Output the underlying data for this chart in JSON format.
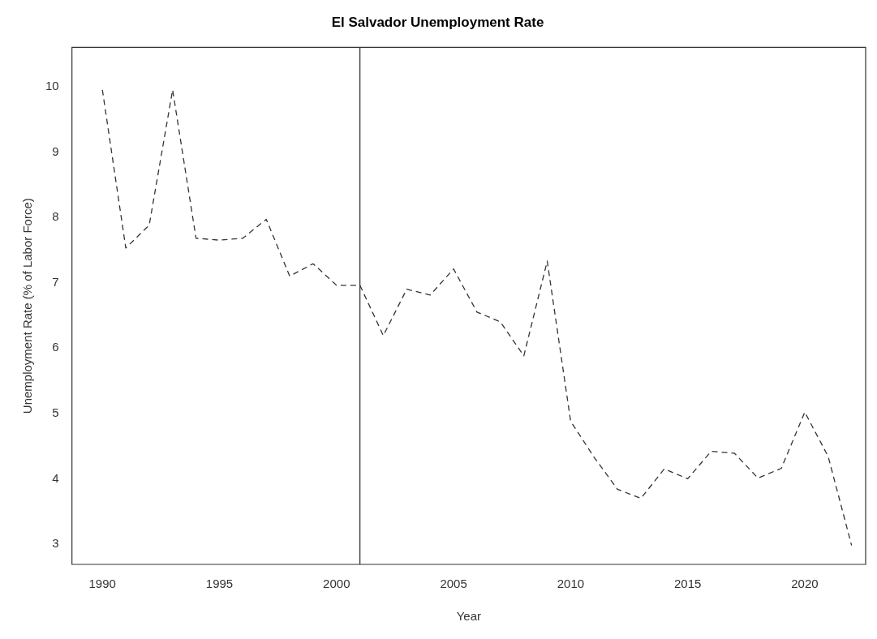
{
  "chart_data": {
    "type": "line",
    "title": "El Salvador Unemployment Rate",
    "xlabel": "Year",
    "ylabel": "Unemployment Rate (% of Labor Force)",
    "x": [
      1990,
      1991,
      1992,
      1993,
      1994,
      1995,
      1996,
      1997,
      1998,
      1999,
      2000,
      2001,
      2002,
      2003,
      2004,
      2005,
      2006,
      2007,
      2008,
      2009,
      2010,
      2011,
      2012,
      2013,
      2014,
      2015,
      2016,
      2017,
      2018,
      2019,
      2020,
      2021,
      2022
    ],
    "series": [
      {
        "color": "#333333",
        "line_style": "dashed",
        "values": [
          9.95,
          7.53,
          7.88,
          9.95,
          7.68,
          7.65,
          7.68,
          7.97,
          7.1,
          7.29,
          6.96,
          6.96,
          6.19,
          6.9,
          6.81,
          7.21,
          6.55,
          6.4,
          5.88,
          7.33,
          4.88,
          4.33,
          3.84,
          3.7,
          4.15,
          4.0,
          4.42,
          4.39,
          4.01,
          4.16,
          5.02,
          4.34,
          2.98
        ]
      }
    ],
    "xlim": [
      1988.7,
      2022.6
    ],
    "xticks": [
      1990,
      1995,
      2000,
      2005,
      2010,
      2015,
      2020
    ],
    "ylim": [
      2.69,
      10.6
    ],
    "yticks": [
      3,
      4,
      5,
      6,
      7,
      8,
      9,
      10
    ],
    "ref_lines": [
      {
        "axis": "x",
        "value": 2001,
        "color": "#333333",
        "line_style": "solid"
      }
    ],
    "grid": false,
    "legend": false,
    "marker": "none"
  }
}
